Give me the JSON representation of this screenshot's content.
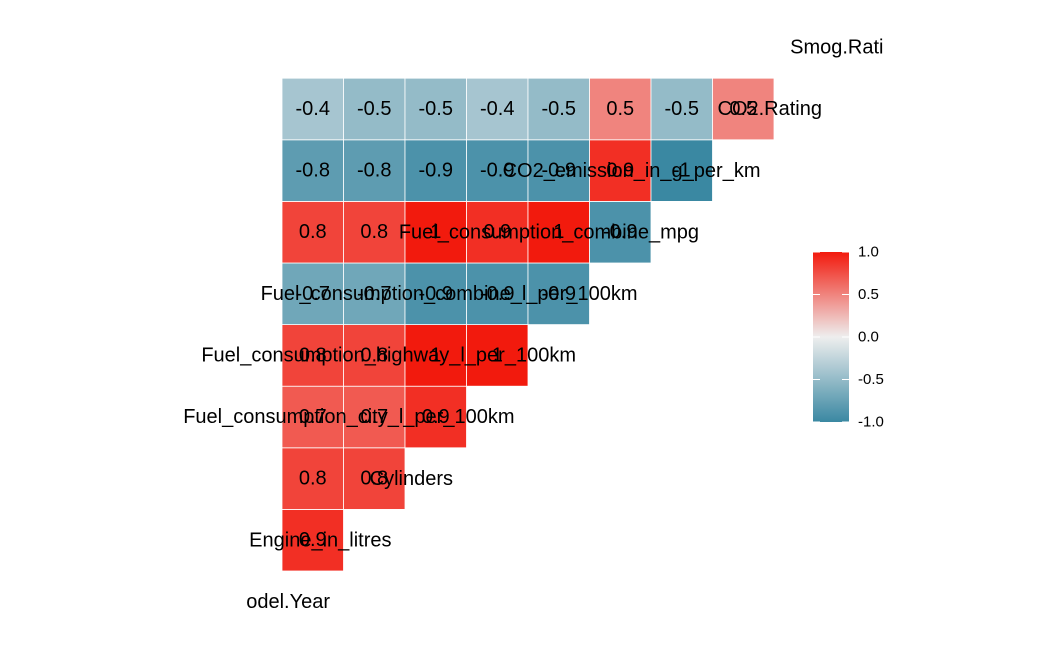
{
  "chart_data": {
    "type": "heatmap",
    "title": "",
    "variables": [
      "Model.Year",
      "Engine_in_litres",
      "Cylinders",
      "Fuel_consumption_city_l_per_100km",
      "Fuel_consumption_highway_l_per_100km",
      "Fuel_consumption_combine_l_per_100km",
      "Fuel_consumption_combine_mpg",
      "CO2_emission_in_g_per_km",
      "CO2.Rating",
      "Smog.Rating"
    ],
    "visible_variable_labels": [
      "odel.Year",
      "Engine_in_litres",
      "Cylinders",
      "Fuel_consumption_city_l_per_100km",
      "Fuel_consumption_highway_l_per_100km",
      "Fuel_consumption_combine_l_per_100km",
      "Fuel_consumption_combine_mpg",
      "CO2_emission_in_g_per_km",
      "CO2.Rating",
      "Smog.Rati"
    ],
    "cells": [
      {
        "row": 1,
        "col": 0,
        "value": 0.9,
        "label": "0.9"
      },
      {
        "row": 2,
        "col": 0,
        "value": 0.8,
        "label": "0.8"
      },
      {
        "row": 2,
        "col": 1,
        "value": 0.8,
        "label": "0.8"
      },
      {
        "row": 3,
        "col": 0,
        "value": 0.7,
        "label": "0.7"
      },
      {
        "row": 3,
        "col": 1,
        "value": 0.7,
        "label": "0.7"
      },
      {
        "row": 3,
        "col": 2,
        "value": 0.9,
        "label": "0.9"
      },
      {
        "row": 4,
        "col": 0,
        "value": 0.8,
        "label": "0.8"
      },
      {
        "row": 4,
        "col": 1,
        "value": 0.8,
        "label": "0.8"
      },
      {
        "row": 4,
        "col": 2,
        "value": 1.0,
        "label": "1"
      },
      {
        "row": 4,
        "col": 3,
        "value": 1.0,
        "label": "1"
      },
      {
        "row": 5,
        "col": 0,
        "value": -0.7,
        "label": "-0.7"
      },
      {
        "row": 5,
        "col": 1,
        "value": -0.7,
        "label": "-0.7"
      },
      {
        "row": 5,
        "col": 2,
        "value": -0.9,
        "label": "-0.9"
      },
      {
        "row": 5,
        "col": 3,
        "value": -0.9,
        "label": "-0.9"
      },
      {
        "row": 5,
        "col": 4,
        "value": -0.9,
        "label": "-0.9"
      },
      {
        "row": 6,
        "col": 0,
        "value": 0.8,
        "label": "0.8"
      },
      {
        "row": 6,
        "col": 1,
        "value": 0.8,
        "label": "0.8"
      },
      {
        "row": 6,
        "col": 2,
        "value": 1.0,
        "label": "1"
      },
      {
        "row": 6,
        "col": 3,
        "value": 0.9,
        "label": "0.9"
      },
      {
        "row": 6,
        "col": 4,
        "value": 1.0,
        "label": "1"
      },
      {
        "row": 6,
        "col": 5,
        "value": -0.9,
        "label": "-0.9"
      },
      {
        "row": 7,
        "col": 0,
        "value": -0.8,
        "label": "-0.8"
      },
      {
        "row": 7,
        "col": 1,
        "value": -0.8,
        "label": "-0.8"
      },
      {
        "row": 7,
        "col": 2,
        "value": -0.9,
        "label": "-0.9"
      },
      {
        "row": 7,
        "col": 3,
        "value": -0.9,
        "label": "-0.9"
      },
      {
        "row": 7,
        "col": 4,
        "value": -0.9,
        "label": "-0.9"
      },
      {
        "row": 7,
        "col": 5,
        "value": 0.9,
        "label": "0.9"
      },
      {
        "row": 7,
        "col": 6,
        "value": -1.0,
        "label": "-1"
      },
      {
        "row": 8,
        "col": 0,
        "value": -0.4,
        "label": "-0.4"
      },
      {
        "row": 8,
        "col": 1,
        "value": -0.5,
        "label": "-0.5"
      },
      {
        "row": 8,
        "col": 2,
        "value": -0.5,
        "label": "-0.5"
      },
      {
        "row": 8,
        "col": 3,
        "value": -0.4,
        "label": "-0.4"
      },
      {
        "row": 8,
        "col": 4,
        "value": -0.5,
        "label": "-0.5"
      },
      {
        "row": 8,
        "col": 5,
        "value": 0.5,
        "label": "0.5"
      },
      {
        "row": 8,
        "col": 6,
        "value": -0.5,
        "label": "-0.5"
      },
      {
        "row": 8,
        "col": 7,
        "value": 0.5,
        "label": "0.5"
      }
    ],
    "color_scale": {
      "min": -1.0,
      "mid": 0.0,
      "max": 1.0,
      "low_color": "#3A88A2",
      "mid_color": "#EEEEEE",
      "high_color": "#F21A0D"
    },
    "legend": {
      "position": "right",
      "ticks": [
        "1.0",
        "0.5",
        "0.0",
        "-0.5",
        "-1.0"
      ],
      "tick_values": [
        1.0,
        0.5,
        0.0,
        -0.5,
        -1.0
      ]
    }
  }
}
